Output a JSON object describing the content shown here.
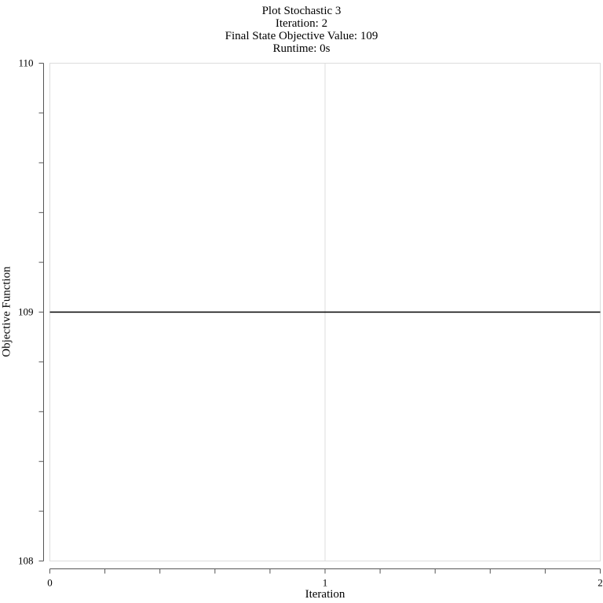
{
  "chart_data": {
    "type": "line",
    "title_lines": [
      "Plot Stochastic 3",
      "Iteration: 2",
      "Final State Objective Value: 109",
      "Runtime: 0s"
    ],
    "xlabel": "Iteration",
    "ylabel": "Objective Function",
    "xlim": [
      0,
      2
    ],
    "ylim": [
      108,
      110
    ],
    "x_ticks": [
      "0",
      "1",
      "2"
    ],
    "y_ticks": [
      "108",
      "109",
      "110"
    ],
    "grid": "vertical",
    "series": [
      {
        "x": [
          0,
          1,
          2
        ],
        "y": [
          109,
          109,
          109
        ],
        "color": "#000000"
      }
    ]
  }
}
